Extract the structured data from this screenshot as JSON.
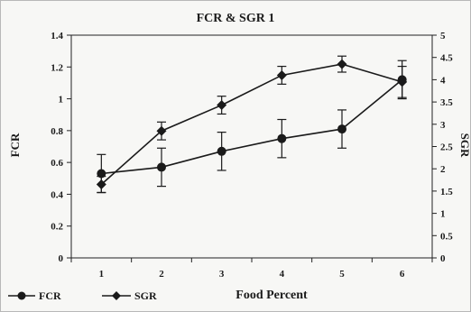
{
  "chart_data": {
    "type": "line",
    "title": "FCR & SGR 1",
    "xlabel": "Food Percent",
    "ylabel_left": "FCR",
    "ylabel_right": "SGR",
    "categories": [
      "1",
      "2",
      "3",
      "4",
      "5",
      "6"
    ],
    "ylim_left": [
      0,
      1.4
    ],
    "ylim_right": [
      0,
      5
    ],
    "yticks_left": [
      "0",
      "0.2",
      "0.4",
      "0.6",
      "0.8",
      "1",
      "1.2",
      "1.4"
    ],
    "yticks_right": [
      "0",
      "0.5",
      "1",
      "1.5",
      "2",
      "2.5",
      "3",
      "3.5",
      "4",
      "4.5",
      "5"
    ],
    "legend_position": "bottom-left",
    "grid": false,
    "series": [
      {
        "name": "FCR",
        "axis": "left",
        "values": [
          0.53,
          0.57,
          0.67,
          0.75,
          0.81,
          1.12
        ],
        "error": [
          0.12,
          0.12,
          0.12,
          0.12,
          0.12,
          0.12
        ]
      },
      {
        "name": "SGR",
        "axis": "right",
        "values": [
          1.65,
          2.85,
          3.43,
          4.1,
          4.35,
          3.95
        ],
        "error": [
          0.18,
          0.2,
          0.2,
          0.2,
          0.18,
          0.35
        ]
      }
    ]
  }
}
